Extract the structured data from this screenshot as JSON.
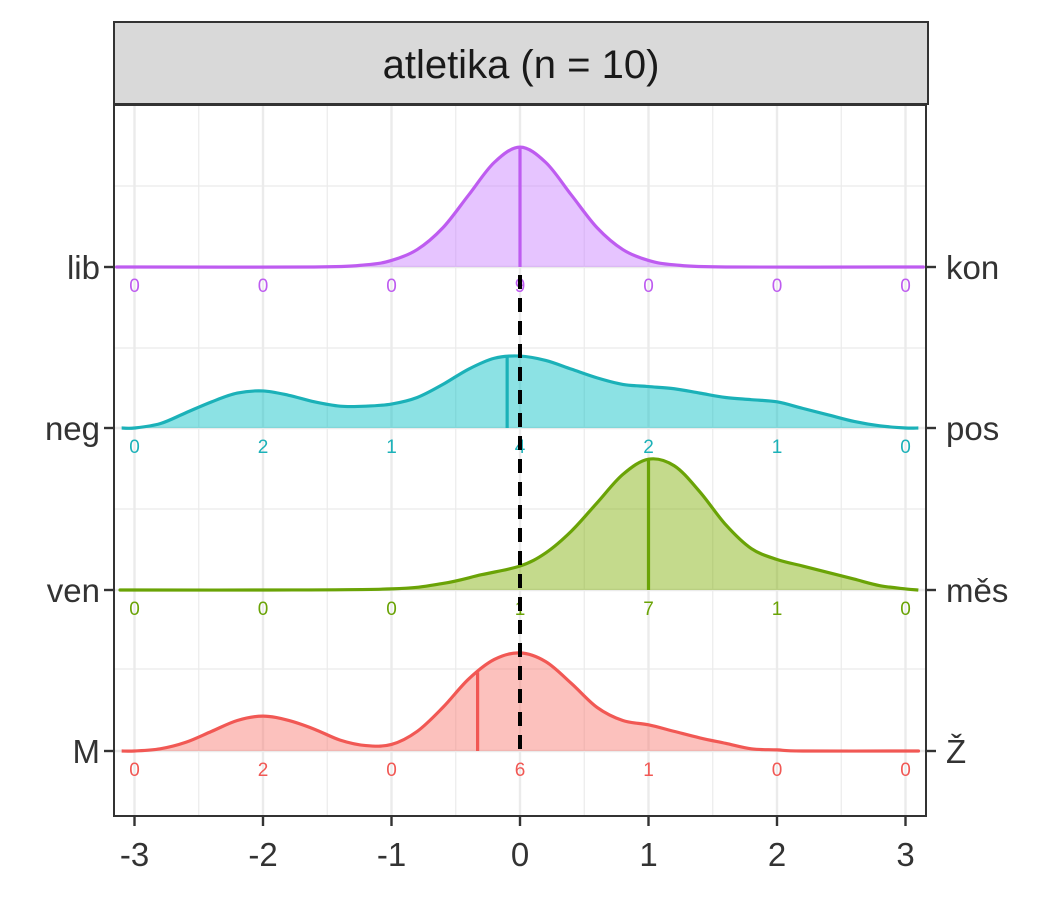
{
  "chart_data": {
    "type": "ridgeline-density",
    "title": "",
    "facet_label": "atletika (n = 10)",
    "xlabel": "",
    "ylabel": "",
    "xlim": [
      -3,
      3
    ],
    "x_ticks": [
      -3,
      -2,
      -1,
      0,
      1,
      2,
      3
    ],
    "x_tick_labels": [
      "-3",
      "-2",
      "-1",
      "0",
      "1",
      "2",
      "3"
    ],
    "grid": true,
    "reference_line_x": 0,
    "count_positions": [
      -3,
      -2,
      -1,
      0,
      1,
      2,
      3
    ],
    "series": [
      {
        "left_label": "M",
        "right_label": "Ž",
        "color": "#F15854",
        "fill": "#F8766D",
        "counts": [
          0,
          2,
          0,
          6,
          1,
          0,
          0
        ],
        "mean": -0.33,
        "density": [
          [
            -3,
            0.0
          ],
          [
            -2.8,
            0.01
          ],
          [
            -2.6,
            0.04
          ],
          [
            -2.4,
            0.09
          ],
          [
            -2.2,
            0.14
          ],
          [
            -2.0,
            0.16
          ],
          [
            -1.8,
            0.14
          ],
          [
            -1.6,
            0.1
          ],
          [
            -1.4,
            0.05
          ],
          [
            -1.2,
            0.025
          ],
          [
            -1.0,
            0.03
          ],
          [
            -0.8,
            0.09
          ],
          [
            -0.6,
            0.2
          ],
          [
            -0.4,
            0.33
          ],
          [
            -0.2,
            0.42
          ],
          [
            0.0,
            0.45
          ],
          [
            0.2,
            0.41
          ],
          [
            0.4,
            0.31
          ],
          [
            0.6,
            0.2
          ],
          [
            0.8,
            0.14
          ],
          [
            1.0,
            0.12
          ],
          [
            1.2,
            0.09
          ],
          [
            1.4,
            0.06
          ],
          [
            1.6,
            0.035
          ],
          [
            1.8,
            0.01
          ],
          [
            2.0,
            0.005
          ],
          [
            2.2,
            0.0
          ],
          [
            3,
            0.0
          ]
        ]
      },
      {
        "left_label": "ven",
        "right_label": "měs",
        "color": "#6AA306",
        "fill": "#7CAE00",
        "counts": [
          0,
          0,
          0,
          1,
          7,
          1,
          0
        ],
        "mean": 1.0,
        "density": [
          [
            -3,
            0.0
          ],
          [
            -2.0,
            0.0
          ],
          [
            -1.0,
            0.005
          ],
          [
            -0.6,
            0.03
          ],
          [
            -0.3,
            0.07
          ],
          [
            0.0,
            0.11
          ],
          [
            0.2,
            0.17
          ],
          [
            0.4,
            0.27
          ],
          [
            0.6,
            0.4
          ],
          [
            0.8,
            0.53
          ],
          [
            1.0,
            0.6
          ],
          [
            1.2,
            0.57
          ],
          [
            1.4,
            0.45
          ],
          [
            1.6,
            0.3
          ],
          [
            1.8,
            0.19
          ],
          [
            2.0,
            0.14
          ],
          [
            2.2,
            0.11
          ],
          [
            2.4,
            0.08
          ],
          [
            2.6,
            0.05
          ],
          [
            2.8,
            0.02
          ],
          [
            3,
            0.005
          ]
        ]
      },
      {
        "left_label": "neg",
        "right_label": "pos",
        "color": "#1BB1B8",
        "fill": "#00BFC4",
        "counts": [
          0,
          2,
          1,
          4,
          2,
          1,
          0
        ],
        "mean": -0.1,
        "density": [
          [
            -3,
            0.0
          ],
          [
            -2.8,
            0.02
          ],
          [
            -2.6,
            0.07
          ],
          [
            -2.4,
            0.12
          ],
          [
            -2.2,
            0.16
          ],
          [
            -2.0,
            0.17
          ],
          [
            -1.8,
            0.15
          ],
          [
            -1.6,
            0.12
          ],
          [
            -1.4,
            0.1
          ],
          [
            -1.2,
            0.1
          ],
          [
            -1.0,
            0.11
          ],
          [
            -0.8,
            0.14
          ],
          [
            -0.6,
            0.2
          ],
          [
            -0.4,
            0.27
          ],
          [
            -0.2,
            0.32
          ],
          [
            0.0,
            0.33
          ],
          [
            0.2,
            0.31
          ],
          [
            0.4,
            0.27
          ],
          [
            0.6,
            0.23
          ],
          [
            0.8,
            0.2
          ],
          [
            1.0,
            0.19
          ],
          [
            1.2,
            0.18
          ],
          [
            1.4,
            0.16
          ],
          [
            1.6,
            0.14
          ],
          [
            1.8,
            0.13
          ],
          [
            2.0,
            0.12
          ],
          [
            2.2,
            0.09
          ],
          [
            2.4,
            0.06
          ],
          [
            2.6,
            0.03
          ],
          [
            2.8,
            0.01
          ],
          [
            3,
            0.0
          ]
        ]
      },
      {
        "left_label": "lib",
        "right_label": "kon",
        "color": "#BE5CF0",
        "fill": "#C77CFF",
        "counts": [
          0,
          0,
          0,
          9,
          0,
          0,
          0
        ],
        "mean": 0.0,
        "density": [
          [
            -3,
            0.0
          ],
          [
            -1.6,
            0.0
          ],
          [
            -1.2,
            0.01
          ],
          [
            -1.0,
            0.03
          ],
          [
            -0.8,
            0.08
          ],
          [
            -0.6,
            0.18
          ],
          [
            -0.4,
            0.33
          ],
          [
            -0.2,
            0.48
          ],
          [
            0.0,
            0.55
          ],
          [
            0.2,
            0.48
          ],
          [
            0.4,
            0.33
          ],
          [
            0.6,
            0.18
          ],
          [
            0.8,
            0.08
          ],
          [
            1.0,
            0.03
          ],
          [
            1.2,
            0.01
          ],
          [
            1.6,
            0.0
          ],
          [
            3,
            0.0
          ]
        ]
      }
    ]
  }
}
